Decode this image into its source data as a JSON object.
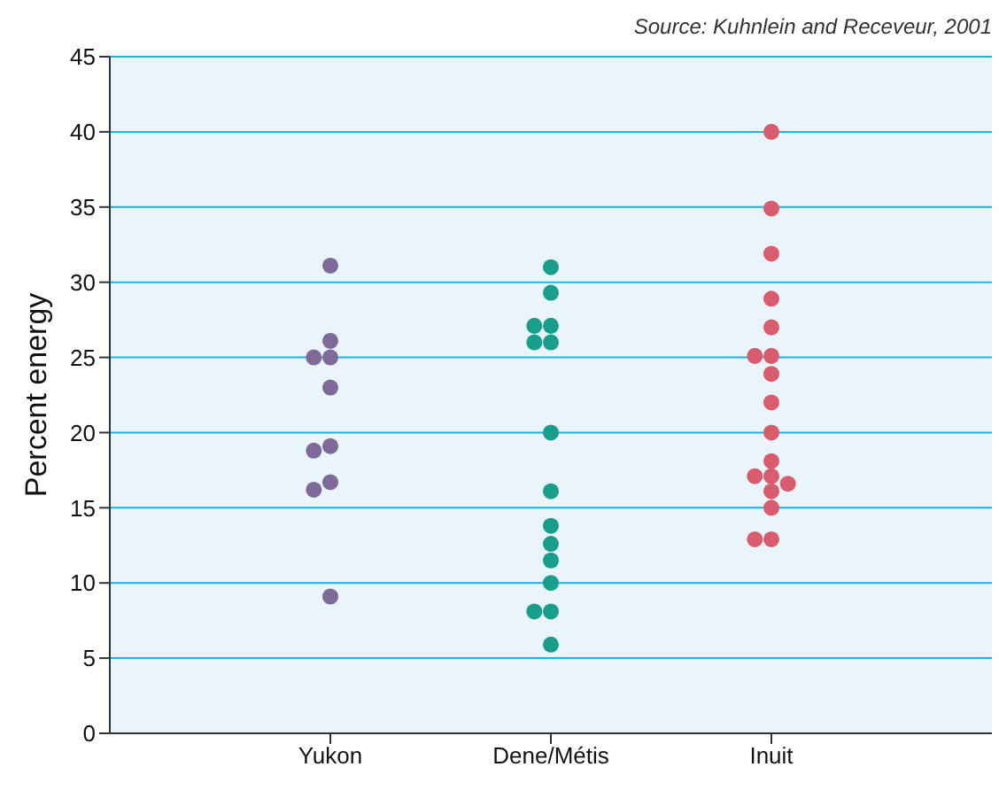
{
  "chart_data": {
    "type": "scatter",
    "ylabel": "Percent energy",
    "annotations": [
      "Source: Kuhnlein and Receveur, 2001"
    ],
    "categories": [
      "Yukon",
      "Dene/Métis",
      "Inuit"
    ],
    "series": [
      {
        "color": "#7d6a98",
        "x": [
          "Yukon",
          "Yukon",
          "Yukon",
          "Yukon",
          "Yukon",
          "Yukon",
          "Yukon",
          "Yukon",
          "Yukon",
          "Yukon"
        ],
        "values": [
          31.1,
          26.1,
          25,
          25,
          23,
          19.1,
          18.8,
          16.7,
          16.2,
          9.1
        ]
      },
      {
        "color": "#1a9e8c",
        "x": [
          "Dene/Métis",
          "Dene/Métis",
          "Dene/Métis",
          "Dene/Métis",
          "Dene/Métis",
          "Dene/Métis",
          "Dene/Métis",
          "Dene/Métis",
          "Dene/Métis",
          "Dene/Métis",
          "Dene/Métis",
          "Dene/Métis",
          "Dene/Métis",
          "Dene/Métis",
          "Dene/Métis"
        ],
        "values": [
          31,
          29.3,
          27.1,
          27.1,
          26,
          26,
          20,
          16.1,
          13.8,
          12.6,
          11.5,
          10,
          8.1,
          8.1,
          5.9
        ]
      },
      {
        "color": "#d95c6e",
        "x": [
          "Inuit",
          "Inuit",
          "Inuit",
          "Inuit",
          "Inuit",
          "Inuit",
          "Inuit",
          "Inuit",
          "Inuit",
          "Inuit",
          "Inuit",
          "Inuit",
          "Inuit",
          "Inuit",
          "Inuit",
          "Inuit",
          "Inuit",
          "Inuit"
        ],
        "values": [
          40,
          34.9,
          31.9,
          28.9,
          27,
          25.1,
          25.1,
          23.9,
          22,
          20,
          18.1,
          17.1,
          17.1,
          16.6,
          16.1,
          15,
          12.9,
          12.9
        ]
      }
    ],
    "ylim": [
      0,
      45
    ],
    "yticks": [
      0,
      5,
      10,
      15,
      20,
      25,
      30,
      35,
      40,
      45
    ],
    "grid": "y",
    "marker": "circle"
  }
}
